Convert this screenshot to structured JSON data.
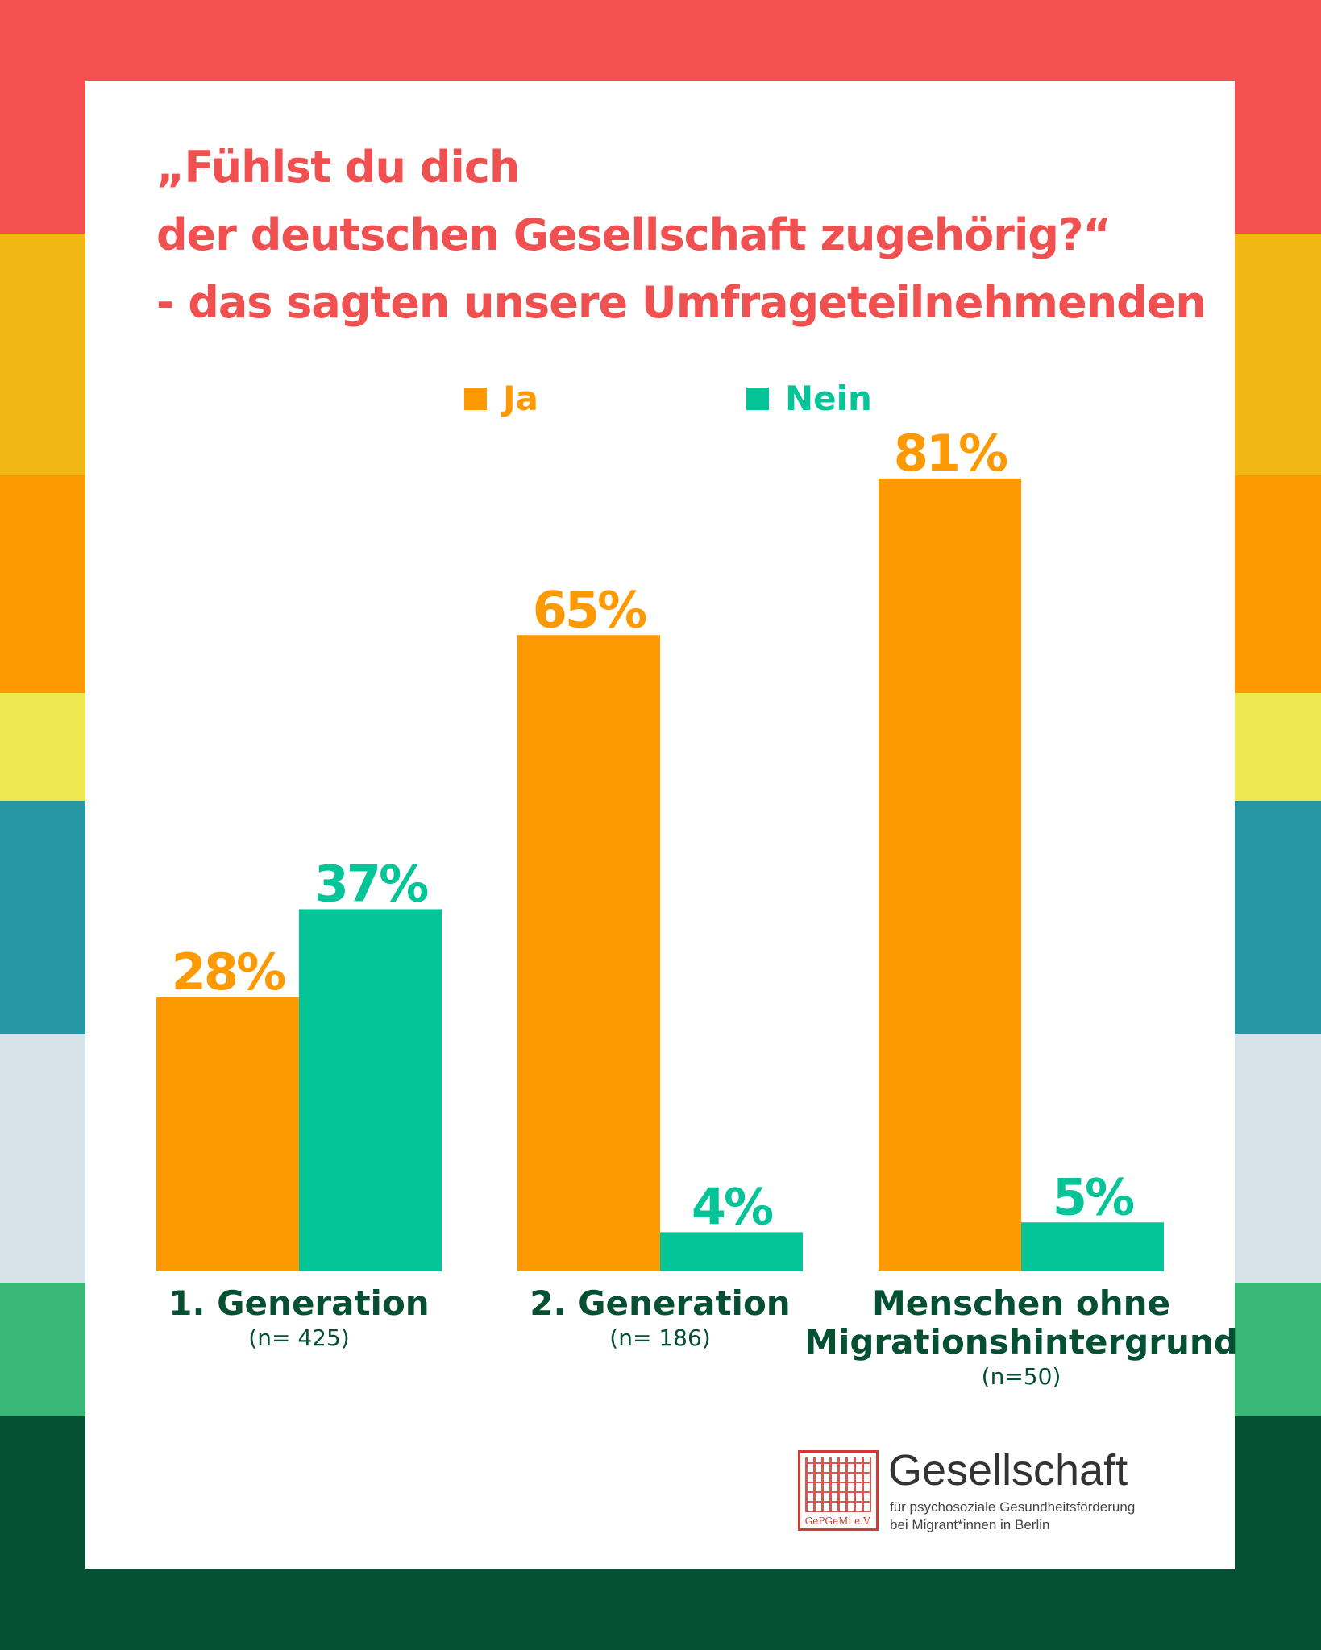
{
  "colors": {
    "ja": "#fd9a03",
    "nein": "#05c497",
    "title": "#f0504f",
    "category": "#054f33",
    "stripes": [
      "#f45150",
      "#f1b714",
      "#fd9a03",
      "#ede850",
      "#2797a6",
      "#d8e2e9",
      "#39b878",
      "#054f33"
    ]
  },
  "title_lines": [
    "„Fühlst du dich",
    "der deutschen Gesellschaft zugehörig?“",
    "- das sagten unsere Umfrageteilnehmenden"
  ],
  "chart_data": {
    "type": "bar",
    "categories": [
      "1. Generation",
      "2. Generation",
      "Menschen ohne Migrationshintergrund"
    ],
    "category_lines": [
      [
        "1.  Generation"
      ],
      [
        "2.  Generation"
      ],
      [
        "Menschen ohne",
        "Migrationshintergrund"
      ]
    ],
    "sample_sizes": [
      "(n= 425)",
      "(n= 186)",
      "(n=50)"
    ],
    "series": [
      {
        "name": "Ja",
        "values": [
          28,
          65,
          81
        ],
        "labels": [
          "28%",
          "65%",
          "81%"
        ]
      },
      {
        "name": "Nein",
        "values": [
          37,
          4,
          5
        ],
        "labels": [
          "37%",
          "4%",
          "5%"
        ]
      }
    ],
    "legend_position": "top-center",
    "grid": false,
    "unit": "%"
  },
  "logo": {
    "name": "Gesellschaft",
    "tagline_1": "für psychosoziale Gesundheitsförderung",
    "tagline_2": "bei Migrant*innen in Berlin",
    "seal_text": "GePGeMi e.V."
  }
}
